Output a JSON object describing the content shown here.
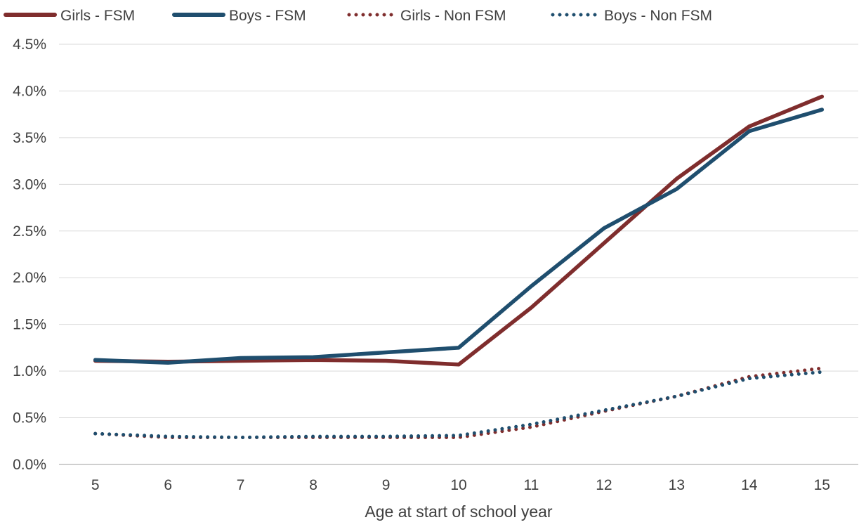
{
  "chart_data": {
    "type": "line",
    "categories": [
      "5",
      "6",
      "7",
      "8",
      "9",
      "10",
      "11",
      "12",
      "13",
      "14",
      "15"
    ],
    "xlabel": "Age at start of school year",
    "ylabel": "",
    "title": "",
    "ylim": [
      0,
      4.5
    ],
    "y_ticks": [
      "0.0%",
      "0.5%",
      "1.0%",
      "1.5%",
      "2.0%",
      "2.5%",
      "3.0%",
      "3.5%",
      "4.0%",
      "4.5%"
    ],
    "y_unit": "%",
    "grid": "horizontal",
    "legend_position": "top",
    "series": [
      {
        "name": "Girls - FSM",
        "color": "#7f2d2d",
        "style": "solid",
        "values": [
          1.11,
          1.1,
          1.11,
          1.12,
          1.11,
          1.07,
          1.68,
          2.37,
          3.06,
          3.62,
          3.94
        ]
      },
      {
        "name": "Boys - FSM",
        "color": "#1f4e6e",
        "style": "solid",
        "values": [
          1.12,
          1.09,
          1.14,
          1.15,
          1.2,
          1.25,
          1.91,
          2.53,
          2.95,
          3.57,
          3.8
        ]
      },
      {
        "name": "Girls - Non FSM",
        "color": "#7f2d2d",
        "style": "dotted",
        "values": [
          0.33,
          0.29,
          0.29,
          0.29,
          0.29,
          0.29,
          0.4,
          0.57,
          0.73,
          0.94,
          1.03
        ]
      },
      {
        "name": "Boys - Non FSM",
        "color": "#1f4e6e",
        "style": "dotted",
        "values": [
          0.33,
          0.3,
          0.29,
          0.3,
          0.3,
          0.31,
          0.43,
          0.58,
          0.73,
          0.92,
          0.99
        ]
      }
    ]
  }
}
